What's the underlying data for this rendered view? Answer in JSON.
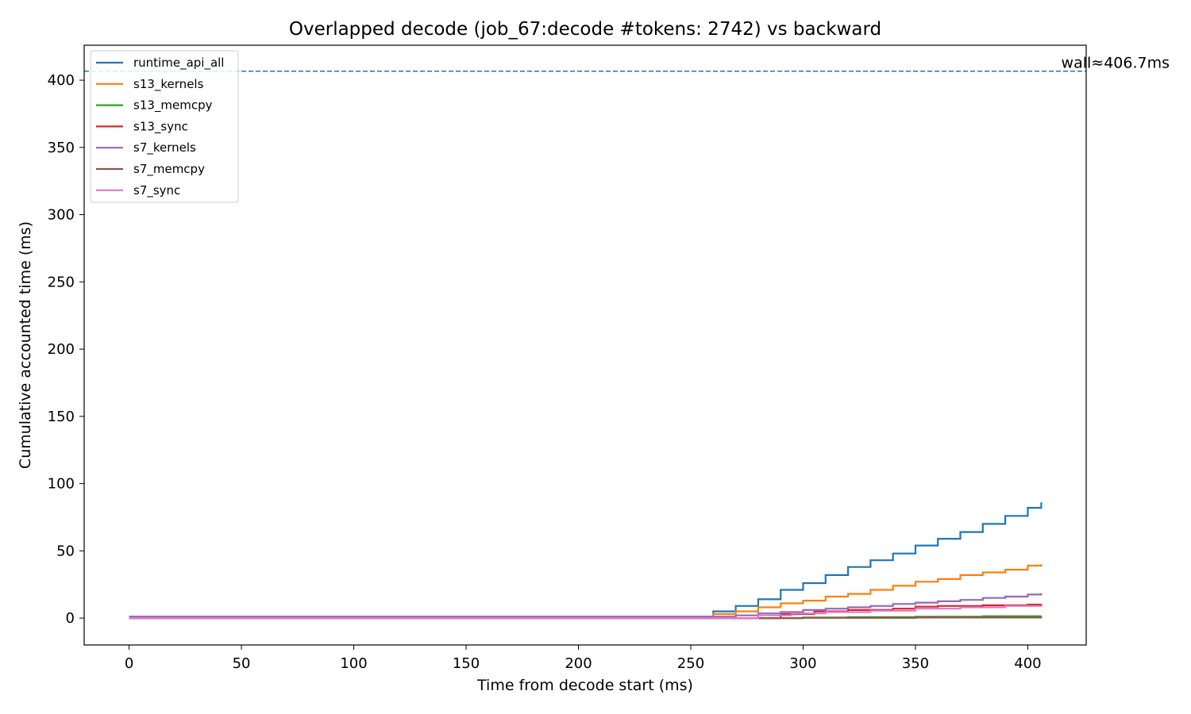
{
  "chart_data": {
    "type": "line",
    "title": "Overlapped decode (job_67:decode #tokens: 2742) vs backward",
    "xlabel": "Time from decode start (ms)",
    "ylabel": "Cumulative accounted time (ms)",
    "xlim": [
      -20,
      426
    ],
    "ylim": [
      -20,
      426
    ],
    "xticks": [
      0,
      50,
      100,
      150,
      200,
      250,
      300,
      350,
      400
    ],
    "yticks": [
      0,
      50,
      100,
      150,
      200,
      250,
      300,
      350,
      400
    ],
    "grid": false,
    "legend_position": "upper-left",
    "reference_line": {
      "y": 406.7,
      "label": "wall≈406.7ms",
      "color": "#1f77b4",
      "style": "dashed"
    },
    "series": [
      {
        "name": "runtime_api_all",
        "color": "#1f77b4",
        "x": [
          0,
          255,
          260,
          270,
          280,
          290,
          300,
          310,
          320,
          330,
          340,
          350,
          360,
          370,
          380,
          390,
          400,
          406
        ],
        "y": [
          1,
          1,
          5,
          9,
          14,
          21,
          26,
          32,
          38,
          43,
          48,
          54,
          59,
          64,
          70,
          76,
          82,
          86
        ]
      },
      {
        "name": "s13_kernels",
        "color": "#ff7f0e",
        "x": [
          0,
          255,
          260,
          270,
          280,
          290,
          300,
          310,
          320,
          330,
          340,
          350,
          360,
          370,
          380,
          390,
          400,
          406
        ],
        "y": [
          0,
          0,
          3,
          5,
          8,
          11,
          13,
          16,
          18,
          21,
          24,
          27,
          29,
          32,
          34,
          36,
          39,
          40
        ]
      },
      {
        "name": "s13_memcpy",
        "color": "#2ca02c",
        "x": [
          0,
          255,
          300,
          320,
          350,
          380,
          406
        ],
        "y": [
          0,
          0,
          0.4,
          0.7,
          1.0,
          1.4,
          1.6
        ]
      },
      {
        "name": "s13_sync",
        "color": "#d62728",
        "x": [
          0,
          275,
          290,
          305,
          320,
          340,
          350,
          360,
          380,
          400,
          406
        ],
        "y": [
          0,
          0,
          3,
          5,
          6,
          7,
          8.5,
          9,
          9.5,
          10,
          10.5
        ]
      },
      {
        "name": "s7_kernels",
        "color": "#9467bd",
        "x": [
          0,
          255,
          270,
          280,
          290,
          300,
          310,
          320,
          330,
          340,
          350,
          360,
          370,
          380,
          390,
          400,
          406
        ],
        "y": [
          1,
          1,
          2,
          3.5,
          4.5,
          6,
          7,
          8,
          9,
          10.5,
          11.5,
          12.5,
          13.5,
          15,
          16,
          17.5,
          18.5
        ]
      },
      {
        "name": "s7_memcpy",
        "color": "#8c564b",
        "x": [
          0,
          255,
          300,
          350,
          406
        ],
        "y": [
          0,
          0,
          0.2,
          0.4,
          0.6
        ]
      },
      {
        "name": "s7_sync",
        "color": "#e377c2",
        "x": [
          0,
          265,
          280,
          295,
          310,
          330,
          350,
          370,
          390,
          406
        ],
        "y": [
          0,
          0,
          2,
          3.5,
          4.5,
          5.5,
          7,
          8,
          9,
          9.5
        ]
      }
    ]
  }
}
